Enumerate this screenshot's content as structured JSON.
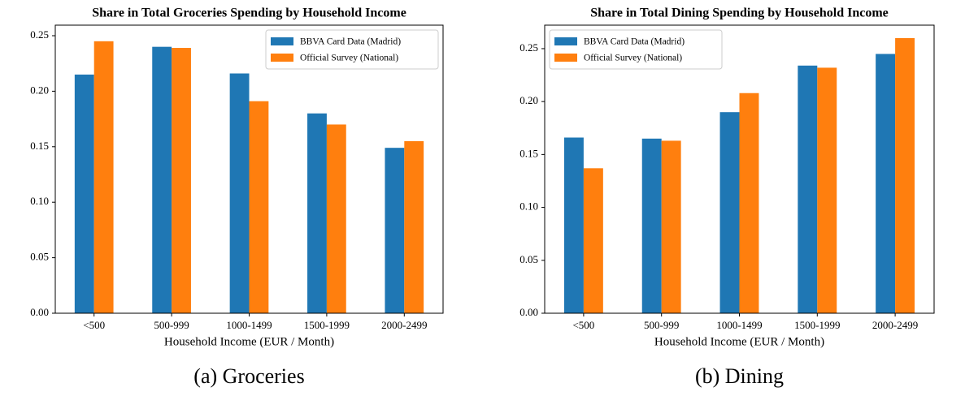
{
  "chart_data": [
    {
      "type": "bar",
      "title": "Share in Total Groceries Spending by Household Income",
      "xlabel": "Household Income (EUR / Month)",
      "caption": "(a) Groceries",
      "categories": [
        "<500",
        "500-999",
        "1000-1499",
        "1500-1999",
        "2000-2499"
      ],
      "series": [
        {
          "name": "BBVA Card Data (Madrid)",
          "color": "#1f77b4",
          "values": [
            0.215,
            0.24,
            0.216,
            0.18,
            0.149
          ]
        },
        {
          "name": "Official Survey (National)",
          "color": "#ff7f0e",
          "values": [
            0.245,
            0.239,
            0.191,
            0.17,
            0.155
          ]
        }
      ],
      "ylim": [
        0,
        0.2595
      ],
      "yticks": [
        {
          "value": 0,
          "label": "0.00"
        },
        {
          "value": 0.05,
          "label": "0.05"
        },
        {
          "value": 0.1,
          "label": "0.10"
        },
        {
          "value": 0.15,
          "label": "0.15"
        },
        {
          "value": 0.2,
          "label": "0.20"
        },
        {
          "value": 0.25,
          "label": "0.25"
        }
      ],
      "legend": "upper right"
    },
    {
      "type": "bar",
      "title": "Share in Total Dining Spending by Household Income",
      "xlabel": "Household Income (EUR / Month)",
      "caption": "(b) Dining",
      "categories": [
        "<500",
        "500-999",
        "1000-1499",
        "1500-1999",
        "2000-2499"
      ],
      "series": [
        {
          "name": "BBVA Card Data (Madrid)",
          "color": "#1f77b4",
          "values": [
            0.166,
            0.165,
            0.19,
            0.234,
            0.245
          ]
        },
        {
          "name": "Official Survey (National)",
          "color": "#ff7f0e",
          "values": [
            0.137,
            0.163,
            0.208,
            0.232,
            0.26
          ]
        }
      ],
      "ylim": [
        0,
        0.2722
      ],
      "yticks": [
        {
          "value": 0,
          "label": "0.00"
        },
        {
          "value": 0.05,
          "label": "0.05"
        },
        {
          "value": 0.1,
          "label": "0.10"
        },
        {
          "value": 0.15,
          "label": "0.15"
        },
        {
          "value": 0.2,
          "label": "0.20"
        },
        {
          "value": 0.25,
          "label": "0.25"
        }
      ],
      "legend": "upper left"
    }
  ]
}
